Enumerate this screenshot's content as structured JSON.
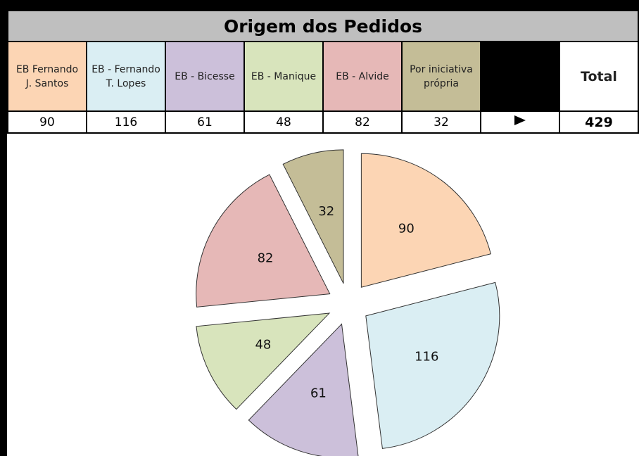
{
  "chart_data": {
    "type": "pie",
    "title": "Origem dos Pedidos",
    "categories": [
      "EB Fernando J. Santos",
      "EB - Fernando T. Lopes",
      "EB - Bicesse",
      "EB - Manique",
      "EB - Alvide",
      "Por iniciativa própria"
    ],
    "values": [
      90,
      116,
      61,
      48,
      82,
      32
    ],
    "colors": [
      "#fcd5b4",
      "#daeef3",
      "#ccc0da",
      "#d8e4bc",
      "#e6b8b7",
      "#c4bd97"
    ]
  },
  "table": {
    "total_label": "Total",
    "total": 429
  }
}
